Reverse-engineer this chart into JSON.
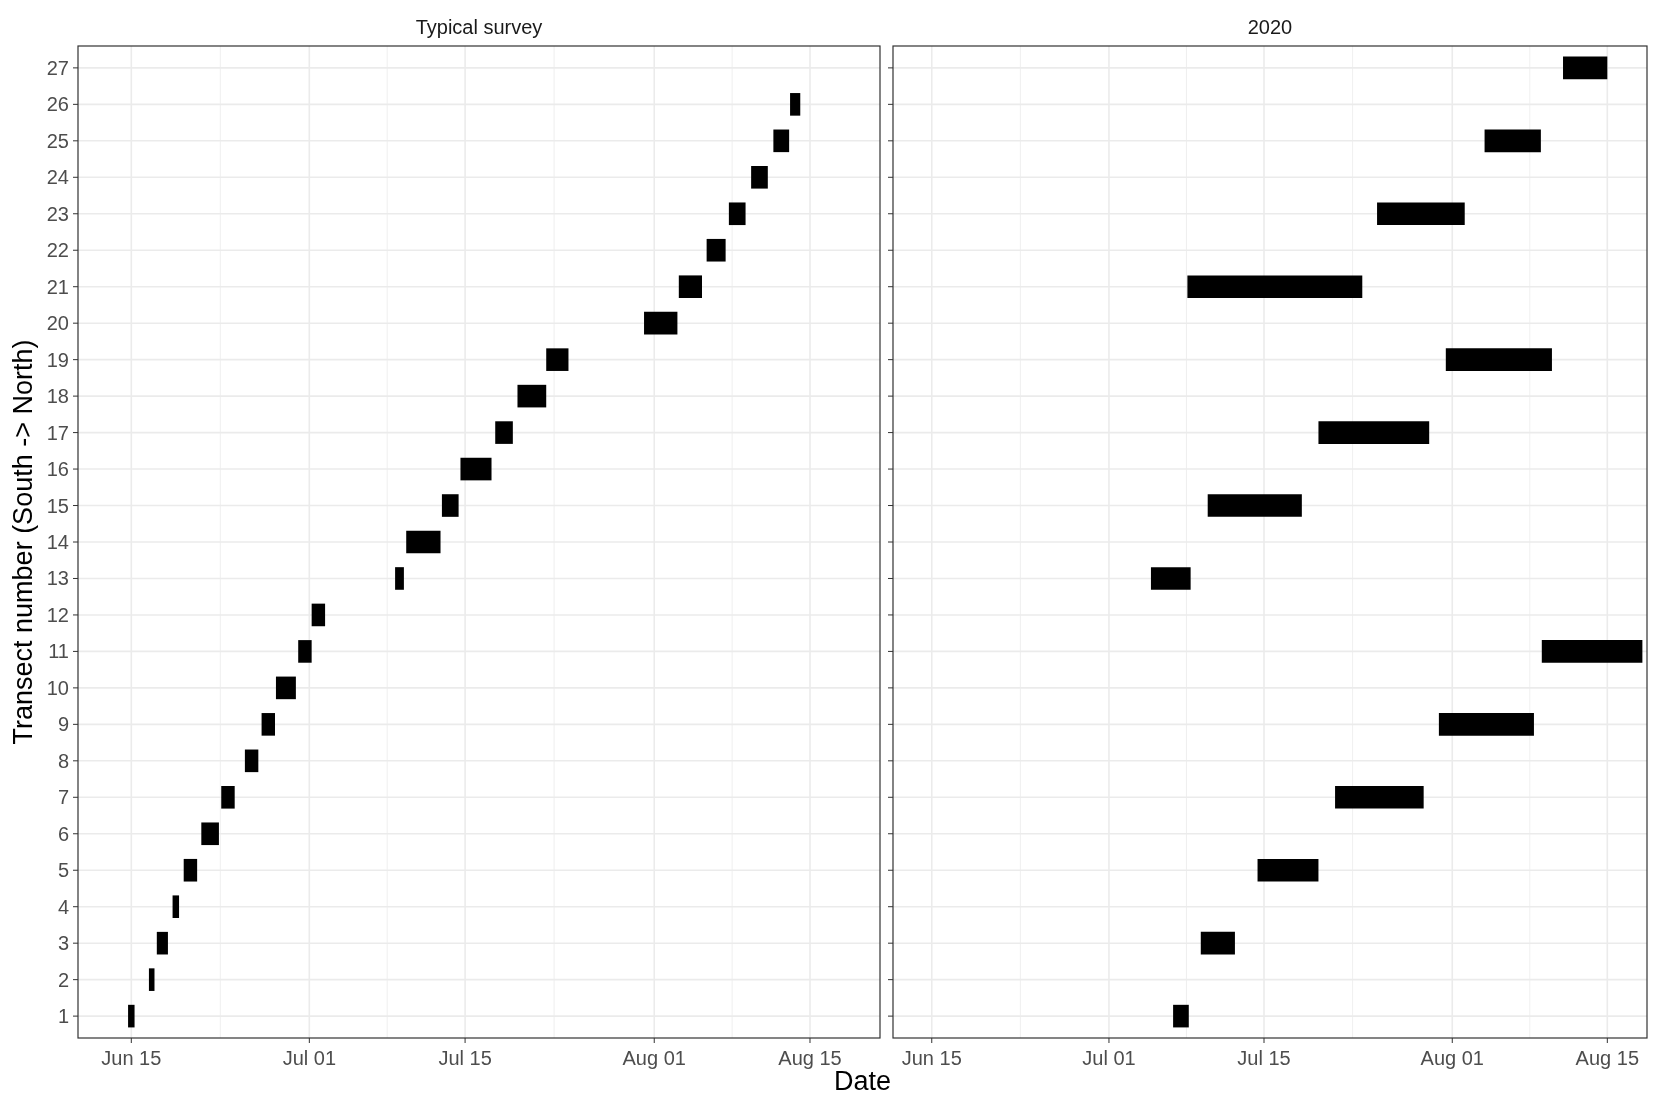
{
  "chart_data": [
    {
      "type": "line",
      "title": "Typical survey",
      "xlabel": "Date",
      "ylabel": "Transect number (South -> North)",
      "grid": true,
      "color": "#000000",
      "marker": "none",
      "xlim": [
        "2020-06-10T05:00",
        "2020-08-21T07:00"
      ],
      "xticks": [
        {
          "value": "2020-06-15",
          "label": "Jun 15"
        },
        {
          "value": "2020-06-23",
          "label": null
        },
        {
          "value": "2020-07-01",
          "label": "Jul 01"
        },
        {
          "value": "2020-07-08",
          "label": null
        },
        {
          "value": "2020-07-15",
          "label": "Jul 15"
        },
        {
          "value": "2020-07-23",
          "label": null
        },
        {
          "value": "2020-08-01",
          "label": "Aug 01"
        },
        {
          "value": "2020-08-08",
          "label": null
        },
        {
          "value": "2020-08-15",
          "label": "Aug 15"
        }
      ],
      "ylim": [
        0.4,
        27.6
      ],
      "yticks": [
        1,
        2,
        3,
        4,
        5,
        6,
        7,
        8,
        9,
        10,
        11,
        12,
        13,
        14,
        15,
        16,
        17,
        18,
        19,
        20,
        21,
        22,
        23,
        24,
        25,
        26,
        27
      ],
      "series": [
        {
          "x": [
            "2020-06-14T17:00",
            "2020-06-15T07:00"
          ],
          "values": [
            1,
            1
          ]
        },
        {
          "x": [
            "2020-06-16T14:00",
            "2020-06-17T02:00"
          ],
          "values": [
            2,
            2
          ]
        },
        {
          "x": [
            "2020-06-17T07:00",
            "2020-06-18T07:00"
          ],
          "values": [
            3,
            3
          ]
        },
        {
          "x": [
            "2020-06-18T17:00",
            "2020-06-19T07:00"
          ],
          "values": [
            4,
            4
          ]
        },
        {
          "x": [
            "2020-06-19T17:00",
            "2020-06-20T22:00"
          ],
          "values": [
            5,
            5
          ]
        },
        {
          "x": [
            "2020-06-21T07:00",
            "2020-06-22T21:00"
          ],
          "values": [
            6,
            6
          ]
        },
        {
          "x": [
            "2020-06-23T02:00",
            "2020-06-24T07:00"
          ],
          "values": [
            7,
            7
          ]
        },
        {
          "x": [
            "2020-06-25T05:00",
            "2020-06-26T10:00"
          ],
          "values": [
            8,
            8
          ]
        },
        {
          "x": [
            "2020-06-26T17:00",
            "2020-06-27T22:00"
          ],
          "values": [
            9,
            9
          ]
        },
        {
          "x": [
            "2020-06-28T00:00",
            "2020-06-29T19:00"
          ],
          "values": [
            10,
            10
          ]
        },
        {
          "x": [
            "2020-06-30T00:00",
            "2020-07-01T05:00"
          ],
          "values": [
            11,
            11
          ]
        },
        {
          "x": [
            "2020-07-01T05:00",
            "2020-07-02T10:00"
          ],
          "values": [
            12,
            12
          ]
        },
        {
          "x": [
            "2020-07-08T17:00",
            "2020-07-09T12:00"
          ],
          "values": [
            13,
            13
          ]
        },
        {
          "x": [
            "2020-07-09T17:00",
            "2020-07-12T19:00"
          ],
          "values": [
            14,
            14
          ]
        },
        {
          "x": [
            "2020-07-12T22:00",
            "2020-07-14T10:00"
          ],
          "values": [
            15,
            15
          ]
        },
        {
          "x": [
            "2020-07-14T14:00",
            "2020-07-17T09:00"
          ],
          "values": [
            16,
            16
          ]
        },
        {
          "x": [
            "2020-07-17T17:00",
            "2020-07-19T07:00"
          ],
          "values": [
            17,
            17
          ]
        },
        {
          "x": [
            "2020-07-19T17:00",
            "2020-07-22T07:00"
          ],
          "values": [
            18,
            18
          ]
        },
        {
          "x": [
            "2020-07-22T07:00",
            "2020-07-24T07:00"
          ],
          "values": [
            19,
            19
          ]
        },
        {
          "x": [
            "2020-07-31T02:00",
            "2020-08-03T02:00"
          ],
          "values": [
            20,
            20
          ]
        },
        {
          "x": [
            "2020-08-03T05:00",
            "2020-08-05T07:00"
          ],
          "values": [
            21,
            21
          ]
        },
        {
          "x": [
            "2020-08-05T17:00",
            "2020-08-07T10:00"
          ],
          "values": [
            22,
            22
          ]
        },
        {
          "x": [
            "2020-08-07T17:00",
            "2020-08-09T05:00"
          ],
          "values": [
            23,
            23
          ]
        },
        {
          "x": [
            "2020-08-09T17:00",
            "2020-08-11T05:00"
          ],
          "values": [
            24,
            24
          ]
        },
        {
          "x": [
            "2020-08-11T17:00",
            "2020-08-13T03:00"
          ],
          "values": [
            25,
            25
          ]
        },
        {
          "x": [
            "2020-08-13T05:00",
            "2020-08-14T03:00"
          ],
          "values": [
            26,
            26
          ]
        }
      ]
    },
    {
      "type": "line",
      "title": "2020",
      "grid": true,
      "color": "#000000",
      "marker": "none",
      "tick_labels": "x",
      "xlim": [
        "2020-06-11T12:00",
        "2020-08-18T14:00"
      ],
      "xticks": [
        {
          "value": "2020-06-15",
          "label": "Jun 15"
        },
        {
          "value": "2020-06-23",
          "label": null
        },
        {
          "value": "2020-07-01",
          "label": "Jul 01"
        },
        {
          "value": "2020-07-08",
          "label": null
        },
        {
          "value": "2020-07-15",
          "label": "Jul 15"
        },
        {
          "value": "2020-07-23",
          "label": null
        },
        {
          "value": "2020-08-01",
          "label": "Aug 01"
        },
        {
          "value": "2020-08-08",
          "label": null
        },
        {
          "value": "2020-08-15",
          "label": "Aug 15"
        }
      ],
      "ylim": [
        0.4,
        27.6
      ],
      "yticks": [
        1,
        2,
        3,
        4,
        5,
        6,
        7,
        8,
        9,
        10,
        11,
        12,
        13,
        14,
        15,
        16,
        17,
        18,
        19,
        20,
        21,
        22,
        23,
        24,
        25,
        26,
        27
      ],
      "series": [
        {
          "x": [
            "2020-07-06T19:00",
            "2020-07-08T05:00"
          ],
          "values": [
            1,
            1
          ]
        },
        {
          "x": [
            "2020-07-09T07:00",
            "2020-07-12T09:00"
          ],
          "values": [
            3,
            3
          ]
        },
        {
          "x": [
            "2020-07-14T10:00",
            "2020-07-19T22:00"
          ],
          "values": [
            5,
            5
          ]
        },
        {
          "x": [
            "2020-07-21T10:00",
            "2020-07-29T10:00"
          ],
          "values": [
            7,
            7
          ]
        },
        {
          "x": [
            "2020-07-30T19:00",
            "2020-08-08T09:00"
          ],
          "values": [
            9,
            9
          ]
        },
        {
          "x": [
            "2020-08-09T02:00",
            "2020-08-18T04:00"
          ],
          "values": [
            11,
            11
          ]
        },
        {
          "x": [
            "2020-07-04T19:00",
            "2020-07-08T09:00"
          ],
          "values": [
            13,
            13
          ]
        },
        {
          "x": [
            "2020-07-09T22:00",
            "2020-07-18T10:00"
          ],
          "values": [
            15,
            15
          ]
        },
        {
          "x": [
            "2020-07-19T22:00",
            "2020-07-29T22:00"
          ],
          "values": [
            17,
            17
          ]
        },
        {
          "x": [
            "2020-07-31T10:00",
            "2020-08-10T00:00"
          ],
          "values": [
            19,
            19
          ]
        },
        {
          "x": [
            "2020-07-08T02:00",
            "2020-07-23T21:00"
          ],
          "values": [
            21,
            21
          ]
        },
        {
          "x": [
            "2020-07-25T05:00",
            "2020-08-02T03:00"
          ],
          "values": [
            23,
            23
          ]
        },
        {
          "x": [
            "2020-08-03T22:00",
            "2020-08-09T00:00"
          ],
          "values": [
            25,
            25
          ]
        },
        {
          "x": [
            "2020-08-11T00:00",
            "2020-08-15T00:00"
          ],
          "values": [
            27,
            27
          ]
        }
      ]
    }
  ]
}
